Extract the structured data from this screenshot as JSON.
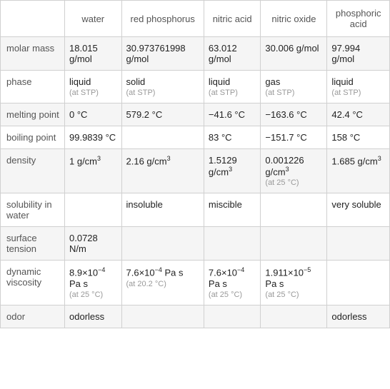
{
  "columns": [
    "water",
    "red phosphorus",
    "nitric acid",
    "nitric oxide",
    "phosphoric acid"
  ],
  "rows": [
    {
      "label": "molar mass",
      "cells": [
        {
          "value": "18.015 g/mol"
        },
        {
          "value": "30.973761998 g/mol"
        },
        {
          "value": "63.012 g/mol"
        },
        {
          "value": "30.006 g/mol"
        },
        {
          "value": "97.994 g/mol"
        }
      ]
    },
    {
      "label": "phase",
      "cells": [
        {
          "value": "liquid",
          "note": "(at STP)"
        },
        {
          "value": "solid",
          "note": "(at STP)"
        },
        {
          "value": "liquid",
          "note": "(at STP)"
        },
        {
          "value": "gas",
          "note": "(at STP)"
        },
        {
          "value": "liquid",
          "note": "(at STP)"
        }
      ]
    },
    {
      "label": "melting point",
      "cells": [
        {
          "value": "0 °C"
        },
        {
          "value": "579.2 °C"
        },
        {
          "value": "−41.6 °C"
        },
        {
          "value": "−163.6 °C"
        },
        {
          "value": "42.4 °C"
        }
      ]
    },
    {
      "label": "boiling point",
      "cells": [
        {
          "value": "99.9839 °C"
        },
        {
          "value": ""
        },
        {
          "value": "83 °C"
        },
        {
          "value": "−151.7 °C"
        },
        {
          "value": "158 °C"
        }
      ]
    },
    {
      "label": "density",
      "cells": [
        {
          "value": "1 g/cm",
          "sup": "3"
        },
        {
          "value": "2.16 g/cm",
          "sup": "3"
        },
        {
          "value": "1.5129 g/cm",
          "sup": "3"
        },
        {
          "value": "0.001226 g/cm",
          "sup": "3",
          "note": "(at 25 °C)"
        },
        {
          "value": "1.685 g/cm",
          "sup": "3"
        }
      ]
    },
    {
      "label": "solubility in water",
      "cells": [
        {
          "value": ""
        },
        {
          "value": "insoluble"
        },
        {
          "value": "miscible"
        },
        {
          "value": ""
        },
        {
          "value": "very soluble"
        }
      ]
    },
    {
      "label": "surface tension",
      "cells": [
        {
          "value": "0.0728 N/m"
        },
        {
          "value": ""
        },
        {
          "value": ""
        },
        {
          "value": ""
        },
        {
          "value": ""
        }
      ]
    },
    {
      "label": "dynamic viscosity",
      "cells": [
        {
          "pre": "8.9×10",
          "sup": "−4",
          "post": " Pa s",
          "note": "(at 25 °C)"
        },
        {
          "pre": "7.6×10",
          "sup": "−4",
          "post": " Pa s",
          "note": "(at 20.2 °C)"
        },
        {
          "pre": "7.6×10",
          "sup": "−4",
          "post": " Pa s",
          "note": "(at 25 °C)"
        },
        {
          "pre": "1.911×10",
          "sup": "−5",
          "post": " Pa s",
          "note": "(at 25 °C)"
        },
        {
          "value": ""
        }
      ]
    },
    {
      "label": "odor",
      "cells": [
        {
          "value": "odorless"
        },
        {
          "value": ""
        },
        {
          "value": ""
        },
        {
          "value": ""
        },
        {
          "value": "odorless"
        }
      ]
    }
  ]
}
